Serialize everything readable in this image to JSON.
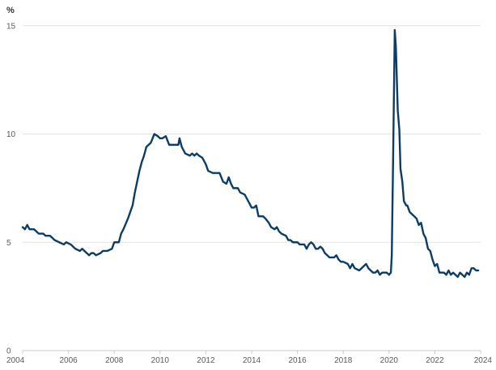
{
  "chart_data": {
    "type": "line",
    "ylabel": "%",
    "ylim": [
      0,
      16
    ],
    "xlim": [
      2004,
      2024
    ],
    "y_ticks": [
      {
        "value": 0,
        "label": "0"
      },
      {
        "value": 5,
        "label": "5"
      },
      {
        "value": 10,
        "label": "10"
      },
      {
        "value": 15,
        "label": "15"
      }
    ],
    "x_ticks": [
      {
        "value": 2004,
        "label": "2004"
      },
      {
        "value": 2006,
        "label": "2006"
      },
      {
        "value": 2008,
        "label": "2008"
      },
      {
        "value": 2010,
        "label": "2010"
      },
      {
        "value": 2012,
        "label": "2012"
      },
      {
        "value": 2014,
        "label": "2014"
      },
      {
        "value": 2016,
        "label": "2016"
      },
      {
        "value": 2018,
        "label": "2018"
      },
      {
        "value": 2020,
        "label": "2020"
      },
      {
        "value": 2022,
        "label": "2022"
      },
      {
        "value": 2024,
        "label": "2024"
      }
    ],
    "grid": true,
    "series": [
      {
        "color": "#0b3d66",
        "points": [
          [
            2004.0,
            5.7
          ],
          [
            2004.1,
            5.6
          ],
          [
            2004.2,
            5.8
          ],
          [
            2004.3,
            5.6
          ],
          [
            2004.5,
            5.6
          ],
          [
            2004.7,
            5.4
          ],
          [
            2004.9,
            5.4
          ],
          [
            2005.0,
            5.3
          ],
          [
            2005.2,
            5.3
          ],
          [
            2005.4,
            5.1
          ],
          [
            2005.6,
            5.0
          ],
          [
            2005.8,
            4.9
          ],
          [
            2005.9,
            5.0
          ],
          [
            2006.1,
            4.9
          ],
          [
            2006.3,
            4.7
          ],
          [
            2006.5,
            4.6
          ],
          [
            2006.6,
            4.7
          ],
          [
            2006.8,
            4.5
          ],
          [
            2006.9,
            4.4
          ],
          [
            2007.0,
            4.5
          ],
          [
            2007.1,
            4.5
          ],
          [
            2007.2,
            4.4
          ],
          [
            2007.4,
            4.5
          ],
          [
            2007.5,
            4.6
          ],
          [
            2007.7,
            4.6
          ],
          [
            2007.9,
            4.7
          ],
          [
            2008.0,
            5.0
          ],
          [
            2008.2,
            5.0
          ],
          [
            2008.3,
            5.4
          ],
          [
            2008.4,
            5.6
          ],
          [
            2008.6,
            6.1
          ],
          [
            2008.8,
            6.7
          ],
          [
            2008.9,
            7.3
          ],
          [
            2009.0,
            7.8
          ],
          [
            2009.1,
            8.3
          ],
          [
            2009.2,
            8.7
          ],
          [
            2009.3,
            9.0
          ],
          [
            2009.4,
            9.4
          ],
          [
            2009.6,
            9.6
          ],
          [
            2009.75,
            10.0
          ],
          [
            2009.9,
            9.9
          ],
          [
            2010.0,
            9.8
          ],
          [
            2010.1,
            9.8
          ],
          [
            2010.25,
            9.9
          ],
          [
            2010.4,
            9.5
          ],
          [
            2010.6,
            9.5
          ],
          [
            2010.8,
            9.5
          ],
          [
            2010.85,
            9.8
          ],
          [
            2010.95,
            9.4
          ],
          [
            2011.1,
            9.1
          ],
          [
            2011.3,
            9.0
          ],
          [
            2011.4,
            9.1
          ],
          [
            2011.5,
            9.0
          ],
          [
            2011.6,
            9.1
          ],
          [
            2011.7,
            9.0
          ],
          [
            2011.85,
            8.9
          ],
          [
            2012.0,
            8.6
          ],
          [
            2012.1,
            8.3
          ],
          [
            2012.3,
            8.2
          ],
          [
            2012.5,
            8.2
          ],
          [
            2012.6,
            8.2
          ],
          [
            2012.75,
            7.8
          ],
          [
            2012.9,
            7.7
          ],
          [
            2013.0,
            8.0
          ],
          [
            2013.1,
            7.7
          ],
          [
            2013.2,
            7.5
          ],
          [
            2013.4,
            7.5
          ],
          [
            2013.5,
            7.3
          ],
          [
            2013.7,
            7.2
          ],
          [
            2013.8,
            7.0
          ],
          [
            2013.9,
            6.8
          ],
          [
            2014.0,
            6.6
          ],
          [
            2014.1,
            6.6
          ],
          [
            2014.2,
            6.7
          ],
          [
            2014.3,
            6.2
          ],
          [
            2014.5,
            6.2
          ],
          [
            2014.6,
            6.1
          ],
          [
            2014.75,
            5.9
          ],
          [
            2014.85,
            5.7
          ],
          [
            2015.0,
            5.6
          ],
          [
            2015.1,
            5.7
          ],
          [
            2015.2,
            5.5
          ],
          [
            2015.3,
            5.4
          ],
          [
            2015.5,
            5.3
          ],
          [
            2015.6,
            5.1
          ],
          [
            2015.7,
            5.1
          ],
          [
            2015.8,
            5.0
          ],
          [
            2015.9,
            5.0
          ],
          [
            2016.0,
            5.0
          ],
          [
            2016.1,
            4.9
          ],
          [
            2016.3,
            4.9
          ],
          [
            2016.4,
            4.7
          ],
          [
            2016.5,
            4.9
          ],
          [
            2016.6,
            5.0
          ],
          [
            2016.7,
            4.9
          ],
          [
            2016.8,
            4.7
          ],
          [
            2016.9,
            4.7
          ],
          [
            2017.0,
            4.8
          ],
          [
            2017.1,
            4.7
          ],
          [
            2017.2,
            4.5
          ],
          [
            2017.3,
            4.4
          ],
          [
            2017.4,
            4.3
          ],
          [
            2017.6,
            4.3
          ],
          [
            2017.7,
            4.4
          ],
          [
            2017.8,
            4.2
          ],
          [
            2017.9,
            4.1
          ],
          [
            2018.0,
            4.1
          ],
          [
            2018.2,
            4.0
          ],
          [
            2018.3,
            3.8
          ],
          [
            2018.4,
            4.0
          ],
          [
            2018.5,
            3.8
          ],
          [
            2018.7,
            3.7
          ],
          [
            2018.8,
            3.8
          ],
          [
            2018.9,
            3.9
          ],
          [
            2019.0,
            4.0
          ],
          [
            2019.1,
            3.8
          ],
          [
            2019.3,
            3.6
          ],
          [
            2019.4,
            3.6
          ],
          [
            2019.5,
            3.7
          ],
          [
            2019.6,
            3.5
          ],
          [
            2019.7,
            3.6
          ],
          [
            2019.9,
            3.6
          ],
          [
            2020.0,
            3.5
          ],
          [
            2020.08,
            3.6
          ],
          [
            2020.12,
            4.4
          ],
          [
            2020.18,
            9.0
          ],
          [
            2020.25,
            14.8
          ],
          [
            2020.3,
            14.0
          ],
          [
            2020.38,
            11.1
          ],
          [
            2020.45,
            10.2
          ],
          [
            2020.5,
            8.4
          ],
          [
            2020.58,
            7.8
          ],
          [
            2020.65,
            6.9
          ],
          [
            2020.75,
            6.7
          ],
          [
            2020.8,
            6.7
          ],
          [
            2020.9,
            6.4
          ],
          [
            2021.0,
            6.3
          ],
          [
            2021.1,
            6.2
          ],
          [
            2021.2,
            6.1
          ],
          [
            2021.3,
            5.8
          ],
          [
            2021.4,
            5.9
          ],
          [
            2021.5,
            5.4
          ],
          [
            2021.6,
            5.2
          ],
          [
            2021.7,
            4.7
          ],
          [
            2021.8,
            4.6
          ],
          [
            2021.9,
            4.2
          ],
          [
            2022.0,
            3.9
          ],
          [
            2022.1,
            4.0
          ],
          [
            2022.2,
            3.6
          ],
          [
            2022.3,
            3.6
          ],
          [
            2022.4,
            3.6
          ],
          [
            2022.5,
            3.5
          ],
          [
            2022.6,
            3.7
          ],
          [
            2022.7,
            3.5
          ],
          [
            2022.8,
            3.6
          ],
          [
            2022.9,
            3.5
          ],
          [
            2023.0,
            3.4
          ],
          [
            2023.1,
            3.6
          ],
          [
            2023.2,
            3.5
          ],
          [
            2023.3,
            3.4
          ],
          [
            2023.4,
            3.6
          ],
          [
            2023.5,
            3.5
          ],
          [
            2023.6,
            3.8
          ],
          [
            2023.7,
            3.8
          ],
          [
            2023.8,
            3.7
          ],
          [
            2023.9,
            3.7
          ]
        ]
      }
    ]
  }
}
